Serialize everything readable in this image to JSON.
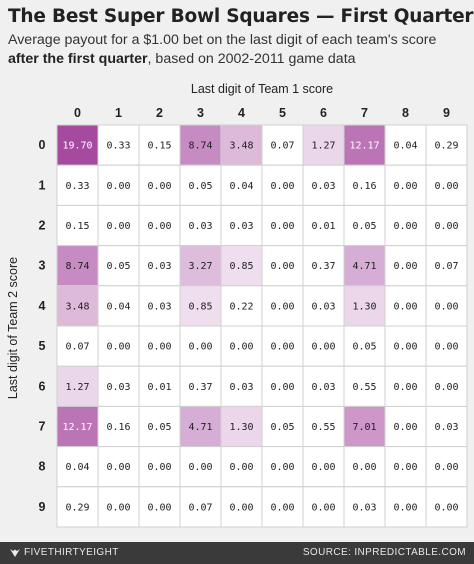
{
  "title": "The Best Super Bowl Squares — First Quarter",
  "subtitle_pre": "Average payout for a $1.00 bet on the last digit of each team's score ",
  "subtitle_bold": "after the first quarter",
  "subtitle_post": ", based on 2002-2011 game data",
  "footer": {
    "brand": "FIVETHIRTYEIGHT",
    "source": "SOURCE: INPREDICTABLE.COM"
  },
  "colors": {
    "max_cell": "#a64aa0",
    "min_cell": "#ffffff",
    "gridline": "#d0d0d0"
  },
  "chart_data": {
    "type": "heatmap",
    "xlabel": "Last digit of Team 1 score",
    "ylabel": "Last digit of Team 2 score",
    "x_labels": [
      "0",
      "1",
      "2",
      "3",
      "4",
      "5",
      "6",
      "7",
      "8",
      "9"
    ],
    "y_labels": [
      "0",
      "1",
      "2",
      "3",
      "4",
      "5",
      "6",
      "7",
      "8",
      "9"
    ],
    "values": [
      [
        "19.70",
        "0.33",
        "0.15",
        "8.74",
        "3.48",
        "0.07",
        "1.27",
        "12.17",
        "0.04",
        "0.29"
      ],
      [
        "0.33",
        "0.00",
        "0.00",
        "0.05",
        "0.04",
        "0.00",
        "0.03",
        "0.16",
        "0.00",
        "0.00"
      ],
      [
        "0.15",
        "0.00",
        "0.00",
        "0.03",
        "0.03",
        "0.00",
        "0.01",
        "0.05",
        "0.00",
        "0.00"
      ],
      [
        "8.74",
        "0.05",
        "0.03",
        "3.27",
        "0.85",
        "0.00",
        "0.37",
        "4.71",
        "0.00",
        "0.07"
      ],
      [
        "3.48",
        "0.04",
        "0.03",
        "0.85",
        "0.22",
        "0.00",
        "0.03",
        "1.30",
        "0.00",
        "0.00"
      ],
      [
        "0.07",
        "0.00",
        "0.00",
        "0.00",
        "0.00",
        "0.00",
        "0.00",
        "0.05",
        "0.00",
        "0.00"
      ],
      [
        "1.27",
        "0.03",
        "0.01",
        "0.37",
        "0.03",
        "0.00",
        "0.03",
        "0.55",
        "0.00",
        "0.00"
      ],
      [
        "12.17",
        "0.16",
        "0.05",
        "4.71",
        "1.30",
        "0.05",
        "0.55",
        "7.01",
        "0.00",
        "0.03"
      ],
      [
        "0.04",
        "0.00",
        "0.00",
        "0.00",
        "0.00",
        "0.00",
        "0.00",
        "0.00",
        "0.00",
        "0.00"
      ],
      [
        "0.29",
        "0.00",
        "0.00",
        "0.07",
        "0.00",
        "0.00",
        "0.00",
        "0.03",
        "0.00",
        "0.00"
      ]
    ]
  }
}
